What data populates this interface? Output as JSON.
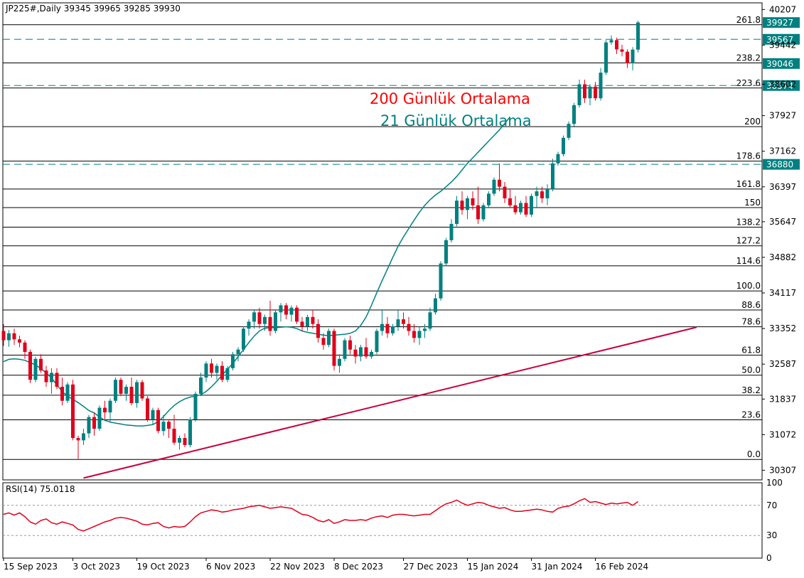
{
  "header": {
    "symbol_line": "JP225#,Daily  39345 39965 39285 39930",
    "rsi_label": "RSI(14) 75.0118"
  },
  "annotations": {
    "ma200_label": "200 Günlük Ortalama",
    "ma21_label": "21 Günlük Ortalama"
  },
  "colors": {
    "background": "#ffffff",
    "frame": "#000000",
    "bull": "#008080",
    "bear": "#e0001b",
    "ma21": "#008080",
    "ma200": "#c8003c",
    "rsi": "#e0001b",
    "fib_line": "#000000",
    "label_box": "#008080",
    "label_text": "#ffffff",
    "ma200_text": "#ff0000",
    "ma21_text": "#008080"
  },
  "chart_data": {
    "type": "candlestick",
    "title": "JP225#,Daily",
    "ohlc_last": {
      "open": 39345,
      "high": 39965,
      "low": 39285,
      "close": 39930
    },
    "price_axis_ticks": [
      "40207",
      "39442",
      "38602",
      "37927",
      "37162",
      "36397",
      "35647",
      "34882",
      "34117",
      "33352",
      "32587",
      "31837",
      "31072",
      "30307"
    ],
    "price_axis_values": [
      40207,
      39442,
      38602,
      37927,
      37162,
      36397,
      35647,
      34882,
      34117,
      33352,
      32587,
      31837,
      31072,
      30307
    ],
    "ylim": [
      30100,
      40350
    ],
    "time_axis_labels": [
      "15 Sep 2023",
      "3 Oct 2023",
      "19 Oct 2023",
      "6 Nov 2023",
      "22 Nov 2023",
      "8 Dec 2023",
      "27 Dec 2023",
      "15 Jan 2024",
      "31 Jan 2024",
      "16 Feb 2024"
    ],
    "time_axis_bar_index": [
      0,
      13,
      25,
      38,
      50,
      62,
      75,
      87,
      99,
      111
    ],
    "fib_levels": [
      {
        "label": "261.8",
        "value": 39880
      },
      {
        "label": "238.2",
        "value": 39060
      },
      {
        "label": "223.6",
        "value": 38520
      },
      {
        "label": "200",
        "value": 37690
      },
      {
        "label": "178.6",
        "value": 36950
      },
      {
        "label": "161.8",
        "value": 36350
      },
      {
        "label": "150",
        "value": 35950
      },
      {
        "label": "138.2",
        "value": 35530
      },
      {
        "label": "127.2",
        "value": 35130
      },
      {
        "label": "114.6",
        "value": 34700
      },
      {
        "label": "100.0",
        "value": 34160
      },
      {
        "label": "88.6",
        "value": 33750
      },
      {
        "label": "78.6",
        "value": 33390
      },
      {
        "label": "61.8",
        "value": 32780
      },
      {
        "label": "50.0",
        "value": 32350
      },
      {
        "label": "38.2",
        "value": 31920
      },
      {
        "label": "23.6",
        "value": 31390
      },
      {
        "label": "0.0",
        "value": 30540
      }
    ],
    "price_labels": [
      {
        "label": "39927",
        "value": 39927,
        "dashed": false
      },
      {
        "label": "39567",
        "value": 39567,
        "dashed": true
      },
      {
        "label": "39046",
        "value": 39046,
        "dashed": false
      },
      {
        "label": "38574",
        "value": 38574,
        "dashed": true
      },
      {
        "label": "36880",
        "value": 36880,
        "dashed": true
      }
    ],
    "candles": [
      [
        33300,
        33450,
        32980,
        33100
      ],
      [
        33100,
        33320,
        32960,
        33250
      ],
      [
        33250,
        33350,
        33000,
        33120
      ],
      [
        33120,
        33200,
        32950,
        33050
      ],
      [
        33050,
        33100,
        32700,
        32850
      ],
      [
        32850,
        32900,
        32180,
        32250
      ],
      [
        32250,
        32750,
        32200,
        32700
      ],
      [
        32700,
        32800,
        32400,
        32450
      ],
      [
        32450,
        32550,
        32100,
        32200
      ],
      [
        32200,
        32500,
        31950,
        32400
      ],
      [
        32400,
        32500,
        32050,
        32100
      ],
      [
        32100,
        32300,
        31700,
        31800
      ],
      [
        31800,
        32200,
        31750,
        32150
      ],
      [
        32150,
        32250,
        30950,
        31000
      ],
      [
        31000,
        31050,
        30550,
        30950
      ],
      [
        30950,
        31200,
        30850,
        31100
      ],
      [
        31100,
        31500,
        31000,
        31450
      ],
      [
        31450,
        31550,
        31050,
        31200
      ],
      [
        31200,
        31700,
        31150,
        31650
      ],
      [
        31650,
        31800,
        31400,
        31550
      ],
      [
        31550,
        31850,
        31350,
        31800
      ],
      [
        31800,
        32300,
        31750,
        32250
      ],
      [
        32250,
        32300,
        31900,
        31950
      ],
      [
        31950,
        32150,
        31800,
        32100
      ],
      [
        32100,
        32300,
        31700,
        31750
      ],
      [
        31750,
        32250,
        31650,
        32200
      ],
      [
        32200,
        32250,
        31800,
        31850
      ],
      [
        31850,
        31900,
        31350,
        31400
      ],
      [
        31400,
        31650,
        31300,
        31600
      ],
      [
        31600,
        31650,
        31100,
        31150
      ],
      [
        31150,
        31500,
        31050,
        31350
      ],
      [
        31350,
        31400,
        31000,
        31200
      ],
      [
        31200,
        31500,
        30850,
        30900
      ],
      [
        30900,
        31050,
        30750,
        31000
      ],
      [
        31000,
        31100,
        30800,
        30850
      ],
      [
        30850,
        31450,
        30800,
        31400
      ],
      [
        31400,
        32000,
        31350,
        31950
      ],
      [
        31950,
        32400,
        31900,
        32300
      ],
      [
        32300,
        32650,
        32200,
        32600
      ],
      [
        32600,
        32700,
        32300,
        32400
      ],
      [
        32400,
        32600,
        32250,
        32550
      ],
      [
        32550,
        32650,
        32200,
        32250
      ],
      [
        32250,
        32550,
        32200,
        32500
      ],
      [
        32500,
        32850,
        32450,
        32800
      ],
      [
        32800,
        32950,
        32650,
        32900
      ],
      [
        32900,
        33400,
        32850,
        33350
      ],
      [
        33350,
        33550,
        33200,
        33500
      ],
      [
        33500,
        33750,
        33350,
        33700
      ],
      [
        33700,
        33800,
        33350,
        33450
      ],
      [
        33450,
        33650,
        33300,
        33600
      ],
      [
        33600,
        33950,
        33200,
        33300
      ],
      [
        33300,
        33750,
        33250,
        33700
      ],
      [
        33700,
        33900,
        33500,
        33850
      ],
      [
        33850,
        33900,
        33550,
        33650
      ],
      [
        33650,
        33850,
        33500,
        33800
      ],
      [
        33800,
        33850,
        33450,
        33500
      ],
      [
        33500,
        33600,
        33300,
        33400
      ],
      [
        33400,
        33650,
        33300,
        33600
      ],
      [
        33600,
        33750,
        33350,
        33450
      ],
      [
        33450,
        33550,
        33050,
        33150
      ],
      [
        33150,
        33250,
        32900,
        33000
      ],
      [
        33000,
        33350,
        32950,
        33300
      ],
      [
        33300,
        33350,
        32450,
        32550
      ],
      [
        32550,
        32800,
        32400,
        32700
      ],
      [
        32700,
        33150,
        32650,
        33100
      ],
      [
        33100,
        33200,
        32800,
        32900
      ],
      [
        32900,
        33000,
        32600,
        32750
      ],
      [
        32750,
        33000,
        32650,
        32950
      ],
      [
        32950,
        33150,
        32700,
        32750
      ],
      [
        32750,
        32900,
        32700,
        32850
      ],
      [
        32850,
        33350,
        32800,
        33300
      ],
      [
        33300,
        33750,
        33200,
        33450
      ],
      [
        33450,
        33600,
        33150,
        33250
      ],
      [
        33250,
        33450,
        33200,
        33400
      ],
      [
        33400,
        33750,
        33300,
        33550
      ],
      [
        33550,
        33700,
        33350,
        33450
      ],
      [
        33450,
        33600,
        33200,
        33300
      ],
      [
        33300,
        33450,
        33050,
        33150
      ],
      [
        33150,
        33400,
        33000,
        33300
      ],
      [
        33300,
        33450,
        33150,
        33350
      ],
      [
        33350,
        33800,
        33300,
        33700
      ],
      [
        33700,
        34100,
        33650,
        34000
      ],
      [
        34000,
        34800,
        33950,
        34750
      ],
      [
        34750,
        35300,
        34700,
        35250
      ],
      [
        35250,
        35700,
        35200,
        35600
      ],
      [
        35600,
        36200,
        35550,
        36100
      ],
      [
        36100,
        36300,
        35800,
        35900
      ],
      [
        35900,
        36200,
        35700,
        36150
      ],
      [
        36150,
        36300,
        35900,
        36000
      ],
      [
        36000,
        36400,
        35600,
        35700
      ],
      [
        35700,
        36050,
        35650,
        36000
      ],
      [
        36000,
        36300,
        35950,
        36250
      ],
      [
        36250,
        36600,
        36200,
        36550
      ],
      [
        36550,
        36900,
        36300,
        36400
      ],
      [
        36400,
        36500,
        36050,
        36150
      ],
      [
        36150,
        36350,
        35950,
        36000
      ],
      [
        36000,
        36200,
        35800,
        35850
      ],
      [
        35850,
        36100,
        35800,
        36050
      ],
      [
        36050,
        36200,
        35750,
        35800
      ],
      [
        35800,
        36250,
        35750,
        36200
      ],
      [
        36200,
        36400,
        35950,
        36300
      ],
      [
        36300,
        36400,
        36050,
        36150
      ],
      [
        36150,
        36450,
        36000,
        36350
      ],
      [
        36350,
        37000,
        36300,
        36900
      ],
      [
        36900,
        37150,
        36850,
        37100
      ],
      [
        37100,
        37500,
        37050,
        37450
      ],
      [
        37450,
        37800,
        37400,
        37750
      ],
      [
        37750,
        38200,
        37700,
        38150
      ],
      [
        38150,
        38700,
        38100,
        38600
      ],
      [
        38600,
        38700,
        38200,
        38300
      ],
      [
        38300,
        38600,
        38150,
        38550
      ],
      [
        38550,
        38650,
        38250,
        38300
      ],
      [
        38300,
        38950,
        38250,
        38850
      ],
      [
        38850,
        39550,
        38800,
        39500
      ],
      [
        39500,
        39650,
        39450,
        39550
      ],
      [
        39550,
        39600,
        39250,
        39350
      ],
      [
        39350,
        39450,
        39200,
        39300
      ],
      [
        39300,
        39350,
        38950,
        39050
      ],
      [
        39050,
        39400,
        38900,
        39345
      ],
      [
        39345,
        39965,
        39285,
        39930
      ]
    ],
    "ma21": [
      32640,
      32690,
      32700,
      32690,
      32670,
      32620,
      32570,
      32490,
      32400,
      32290,
      32140,
      32000,
      31900,
      31830,
      31760,
      31680,
      31590,
      31540,
      31450,
      31380,
      31340,
      31320,
      31300,
      31280,
      31270,
      31260,
      31260,
      31270,
      31290,
      31350,
      31460,
      31590,
      31700,
      31780,
      31840,
      31880,
      31900,
      31930,
      32000,
      32100,
      32220,
      32350,
      32480,
      32600,
      32750,
      32900,
      33050,
      33190,
      33300,
      33360,
      33370,
      33370,
      33380,
      33390,
      33380,
      33350,
      33300,
      33270,
      33250,
      33230,
      33210,
      33200,
      33210,
      33220,
      33230,
      33250,
      33300,
      33420,
      33600,
      33850,
      34120,
      34380,
      34630,
      34880,
      35120,
      35320,
      35500,
      35680,
      35850,
      36000,
      36120,
      36220,
      36300,
      36400,
      36500,
      36620,
      36760,
      36900,
      37020,
      37140,
      37260,
      37380,
      37500,
      37620,
      37760,
      37900
    ],
    "ma21_start_index": 0,
    "ma200_start": {
      "index": 15,
      "value": 30140
    },
    "ma200_end": {
      "index": 130,
      "value": 33380
    },
    "rsi": {
      "ticks": [
        "100",
        "70",
        "30",
        "0"
      ],
      "tick_values": [
        100,
        70,
        30,
        0
      ],
      "levels": [
        70,
        30
      ],
      "values": [
        58,
        60,
        57,
        60,
        55,
        48,
        45,
        50,
        52,
        47,
        45,
        48,
        46,
        44,
        38,
        36,
        39,
        42,
        45,
        48,
        50,
        53,
        54,
        53,
        51,
        49,
        45,
        44,
        46,
        47,
        42,
        40,
        42,
        41,
        42,
        48,
        55,
        60,
        62,
        64,
        63,
        61,
        62,
        64,
        65,
        66,
        68,
        69,
        70,
        68,
        66,
        67,
        68,
        67,
        66,
        62,
        58,
        57,
        54,
        50,
        48,
        51,
        46,
        48,
        51,
        50,
        50,
        51,
        50,
        53,
        55,
        56,
        54,
        57,
        58,
        58,
        57,
        56,
        57,
        58,
        58,
        63,
        68,
        72,
        74,
        77,
        73,
        70,
        72,
        74,
        73,
        70,
        68,
        66,
        67,
        64,
        62,
        62,
        63,
        64,
        65,
        64,
        62,
        61,
        66,
        68,
        69,
        72,
        76,
        79,
        74,
        75,
        73,
        71,
        73,
        72,
        73,
        74,
        70,
        75.0118
      ]
    }
  }
}
